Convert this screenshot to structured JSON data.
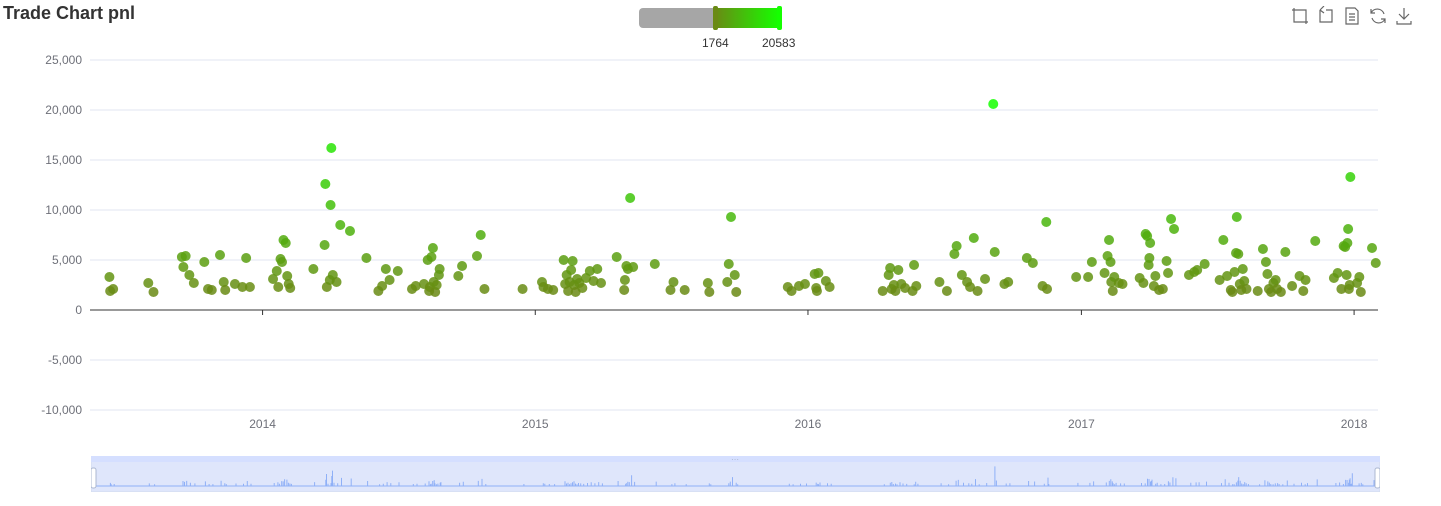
{
  "title": "Trade Chart pnl",
  "visual_map": {
    "min_label": "1764",
    "max_label": "20583",
    "min_value": 1764,
    "max_value": 20583,
    "color_low": "#6a8a14",
    "color_high": "#15ff00",
    "track_color": "#a6a6a6"
  },
  "toolbox": [
    "data-zoom-icon",
    "zoom-reset-icon",
    "data-view-icon",
    "restore-icon",
    "save-image-icon"
  ],
  "colors": {
    "axis": "#333333",
    "grid": "#e0e6f1",
    "tick_text": "#6e7079",
    "zoom_fill": "#dfe6fb"
  },
  "chart_data": {
    "type": "scatter",
    "title": "Trade Chart pnl",
    "xlabel": "",
    "ylabel": "",
    "x_ticks": [
      "2014",
      "2015",
      "2016",
      "2017",
      "2018"
    ],
    "y_ticks": [
      "25,000",
      "20,000",
      "15,000",
      "10,000",
      "5,000",
      "0",
      "-5,000",
      "-10,000"
    ],
    "ylim": [
      -10000,
      25000
    ],
    "xlim": [
      "2013-05-15",
      "2018-02-02"
    ],
    "grid": true,
    "legend": "none",
    "points": [
      [
        "2013-06-10",
        3300
      ],
      [
        "2013-06-11",
        1900
      ],
      [
        "2013-06-15",
        2100
      ],
      [
        "2013-08-01",
        2700
      ],
      [
        "2013-08-08",
        1800
      ],
      [
        "2013-09-15",
        5300
      ],
      [
        "2013-09-17",
        4300
      ],
      [
        "2013-09-20",
        5400
      ],
      [
        "2013-09-25",
        3500
      ],
      [
        "2013-10-01",
        2700
      ],
      [
        "2013-10-15",
        4800
      ],
      [
        "2013-10-20",
        2100
      ],
      [
        "2013-10-25",
        2000
      ],
      [
        "2013-11-05",
        5500
      ],
      [
        "2013-11-10",
        2800
      ],
      [
        "2013-11-12",
        2000
      ],
      [
        "2013-11-25",
        2600
      ],
      [
        "2013-12-05",
        2300
      ],
      [
        "2013-12-10",
        5200
      ],
      [
        "2013-12-15",
        2300
      ],
      [
        "2014-01-15",
        3100
      ],
      [
        "2014-01-20",
        3900
      ],
      [
        "2014-01-22",
        2300
      ],
      [
        "2014-01-25",
        5100
      ],
      [
        "2014-01-27",
        4800
      ],
      [
        "2014-01-29",
        7000
      ],
      [
        "2014-02-01",
        6700
      ],
      [
        "2014-02-03",
        3400
      ],
      [
        "2014-02-05",
        2600
      ],
      [
        "2014-02-07",
        2200
      ],
      [
        "2014-03-10",
        4100
      ],
      [
        "2014-03-25",
        6500
      ],
      [
        "2014-03-26",
        12600
      ],
      [
        "2014-03-28",
        2300
      ],
      [
        "2014-04-01",
        3000
      ],
      [
        "2014-04-02",
        10500
      ],
      [
        "2014-04-03",
        16200
      ],
      [
        "2014-04-05",
        3500
      ],
      [
        "2014-04-10",
        2800
      ],
      [
        "2014-04-15",
        8500
      ],
      [
        "2014-04-28",
        7900
      ],
      [
        "2014-05-20",
        5200
      ],
      [
        "2014-06-05",
        1900
      ],
      [
        "2014-06-10",
        2400
      ],
      [
        "2014-06-15",
        4100
      ],
      [
        "2014-06-20",
        3000
      ],
      [
        "2014-07-01",
        3900
      ],
      [
        "2014-07-20",
        2100
      ],
      [
        "2014-07-25",
        2400
      ],
      [
        "2014-08-05",
        2600
      ],
      [
        "2014-08-10",
        5000
      ],
      [
        "2014-08-12",
        1900
      ],
      [
        "2014-08-13",
        2300
      ],
      [
        "2014-08-15",
        5300
      ],
      [
        "2014-08-17",
        6200
      ],
      [
        "2014-08-18",
        2800
      ],
      [
        "2014-08-20",
        1800
      ],
      [
        "2014-08-22",
        2500
      ],
      [
        "2014-08-25",
        3500
      ],
      [
        "2014-08-26",
        4100
      ],
      [
        "2014-09-20",
        3400
      ],
      [
        "2014-09-25",
        4400
      ],
      [
        "2014-10-15",
        5400
      ],
      [
        "2014-10-20",
        7500
      ],
      [
        "2014-10-25",
        2100
      ],
      [
        "2014-12-15",
        2100
      ],
      [
        "2015-01-10",
        2800
      ],
      [
        "2015-01-12",
        2300
      ],
      [
        "2015-01-18",
        2100
      ],
      [
        "2015-01-25",
        2000
      ],
      [
        "2015-02-08",
        5000
      ],
      [
        "2015-02-10",
        2600
      ],
      [
        "2015-02-12",
        3500
      ],
      [
        "2015-02-14",
        1900
      ],
      [
        "2015-02-16",
        2800
      ],
      [
        "2015-02-18",
        4000
      ],
      [
        "2015-02-20",
        4900
      ],
      [
        "2015-02-22",
        2500
      ],
      [
        "2015-02-24",
        1800
      ],
      [
        "2015-02-26",
        3100
      ],
      [
        "2015-03-01",
        2700
      ],
      [
        "2015-03-05",
        2200
      ],
      [
        "2015-03-10",
        3200
      ],
      [
        "2015-03-15",
        3900
      ],
      [
        "2015-03-20",
        2900
      ],
      [
        "2015-03-25",
        4100
      ],
      [
        "2015-03-30",
        2700
      ],
      [
        "2015-04-20",
        5300
      ],
      [
        "2015-04-30",
        2000
      ],
      [
        "2015-05-01",
        3000
      ],
      [
        "2015-05-03",
        4400
      ],
      [
        "2015-05-05",
        4100
      ],
      [
        "2015-05-08",
        11200
      ],
      [
        "2015-05-12",
        4300
      ],
      [
        "2015-06-10",
        4600
      ],
      [
        "2015-07-01",
        2000
      ],
      [
        "2015-07-05",
        2800
      ],
      [
        "2015-07-20",
        2000
      ],
      [
        "2015-08-20",
        2700
      ],
      [
        "2015-08-22",
        1800
      ],
      [
        "2015-09-15",
        2800
      ],
      [
        "2015-09-17",
        4600
      ],
      [
        "2015-09-20",
        9300
      ],
      [
        "2015-09-25",
        3500
      ],
      [
        "2015-09-27",
        1800
      ],
      [
        "2015-12-05",
        2300
      ],
      [
        "2015-12-10",
        1900
      ],
      [
        "2015-12-20",
        2400
      ],
      [
        "2015-12-28",
        2600
      ],
      [
        "2016-01-10",
        3600
      ],
      [
        "2016-01-12",
        2200
      ],
      [
        "2016-01-13",
        1900
      ],
      [
        "2016-01-15",
        3700
      ],
      [
        "2016-01-25",
        2900
      ],
      [
        "2016-01-30",
        2300
      ],
      [
        "2016-04-10",
        1900
      ],
      [
        "2016-04-18",
        3500
      ],
      [
        "2016-04-20",
        4200
      ],
      [
        "2016-04-22",
        2100
      ],
      [
        "2016-04-25",
        2500
      ],
      [
        "2016-04-27",
        1900
      ],
      [
        "2016-05-01",
        4000
      ],
      [
        "2016-05-05",
        2600
      ],
      [
        "2016-05-10",
        2200
      ],
      [
        "2016-05-20",
        1900
      ],
      [
        "2016-05-22",
        4500
      ],
      [
        "2016-05-25",
        2400
      ],
      [
        "2016-06-25",
        2800
      ],
      [
        "2016-07-05",
        1900
      ],
      [
        "2016-07-15",
        5600
      ],
      [
        "2016-07-18",
        6400
      ],
      [
        "2016-07-25",
        3500
      ],
      [
        "2016-08-01",
        2800
      ],
      [
        "2016-08-05",
        2300
      ],
      [
        "2016-08-10",
        7200
      ],
      [
        "2016-08-15",
        1900
      ],
      [
        "2016-08-25",
        3100
      ],
      [
        "2016-09-05",
        20600
      ],
      [
        "2016-09-07",
        5800
      ],
      [
        "2016-09-20",
        2600
      ],
      [
        "2016-09-25",
        2800
      ],
      [
        "2016-10-20",
        5200
      ],
      [
        "2016-10-28",
        4700
      ],
      [
        "2016-11-10",
        2400
      ],
      [
        "2016-11-15",
        8800
      ],
      [
        "2016-11-16",
        2100
      ],
      [
        "2016-12-25",
        3300
      ],
      [
        "2017-01-10",
        3300
      ],
      [
        "2017-01-15",
        4800
      ],
      [
        "2017-02-01",
        3700
      ],
      [
        "2017-02-05",
        5400
      ],
      [
        "2017-02-07",
        7000
      ],
      [
        "2017-02-09",
        4800
      ],
      [
        "2017-02-10",
        2800
      ],
      [
        "2017-02-12",
        1900
      ],
      [
        "2017-02-14",
        3300
      ],
      [
        "2017-02-20",
        2700
      ],
      [
        "2017-02-25",
        2600
      ],
      [
        "2017-03-20",
        3200
      ],
      [
        "2017-03-25",
        2700
      ],
      [
        "2017-03-28",
        7600
      ],
      [
        "2017-03-30",
        7400
      ],
      [
        "2017-04-01",
        4500
      ],
      [
        "2017-04-02",
        5200
      ],
      [
        "2017-04-03",
        6700
      ],
      [
        "2017-04-08",
        2400
      ],
      [
        "2017-04-10",
        3400
      ],
      [
        "2017-04-15",
        2000
      ],
      [
        "2017-04-20",
        2100
      ],
      [
        "2017-04-25",
        4900
      ],
      [
        "2017-04-27",
        3700
      ],
      [
        "2017-05-01",
        9100
      ],
      [
        "2017-05-05",
        8100
      ],
      [
        "2017-05-25",
        3500
      ],
      [
        "2017-06-01",
        3800
      ],
      [
        "2017-06-05",
        4000
      ],
      [
        "2017-06-15",
        4600
      ],
      [
        "2017-07-05",
        3000
      ],
      [
        "2017-07-10",
        7000
      ],
      [
        "2017-07-15",
        3400
      ],
      [
        "2017-07-20",
        2000
      ],
      [
        "2017-07-22",
        1800
      ],
      [
        "2017-07-25",
        3800
      ],
      [
        "2017-07-27",
        5700
      ],
      [
        "2017-07-28",
        9300
      ],
      [
        "2017-07-30",
        5600
      ],
      [
        "2017-08-01",
        2600
      ],
      [
        "2017-08-03",
        2000
      ],
      [
        "2017-08-05",
        4100
      ],
      [
        "2017-08-07",
        2900
      ],
      [
        "2017-08-10",
        2100
      ],
      [
        "2017-08-25",
        1900
      ],
      [
        "2017-09-01",
        6100
      ],
      [
        "2017-09-05",
        4800
      ],
      [
        "2017-09-07",
        3600
      ],
      [
        "2017-09-09",
        2100
      ],
      [
        "2017-09-12",
        1800
      ],
      [
        "2017-09-15",
        2700
      ],
      [
        "2017-09-18",
        3000
      ],
      [
        "2017-09-20",
        2100
      ],
      [
        "2017-09-25",
        1800
      ],
      [
        "2017-10-01",
        5800
      ],
      [
        "2017-10-10",
        2400
      ],
      [
        "2017-10-20",
        3400
      ],
      [
        "2017-10-25",
        1900
      ],
      [
        "2017-10-28",
        3000
      ],
      [
        "2017-11-10",
        6900
      ],
      [
        "2017-12-05",
        3200
      ],
      [
        "2017-12-10",
        3700
      ],
      [
        "2017-12-15",
        2100
      ],
      [
        "2017-12-18",
        6400
      ],
      [
        "2017-12-20",
        6300
      ],
      [
        "2017-12-22",
        3500
      ],
      [
        "2017-12-23",
        6700
      ],
      [
        "2017-12-24",
        8100
      ],
      [
        "2017-12-25",
        2100
      ],
      [
        "2017-12-26",
        2500
      ],
      [
        "2017-12-27",
        13300
      ],
      [
        "2018-01-05",
        2700
      ],
      [
        "2018-01-08",
        3300
      ],
      [
        "2018-01-10",
        1800
      ],
      [
        "2018-01-25",
        6200
      ],
      [
        "2018-01-30",
        4700
      ]
    ]
  }
}
